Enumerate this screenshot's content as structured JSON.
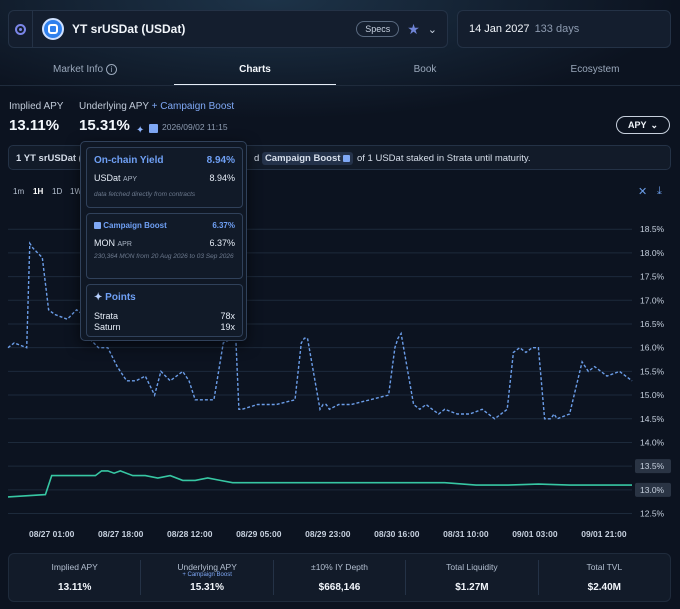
{
  "header": {
    "token_name": "YT srUSDat (USDat)",
    "specs_label": "Specs",
    "expiry_date": "14 Jan 2027",
    "expiry_days": "133 days"
  },
  "tabs": [
    {
      "label": "Market Info",
      "active": false
    },
    {
      "label": "Charts",
      "active": true
    },
    {
      "label": "Book",
      "active": false
    },
    {
      "label": "Ecosystem",
      "active": false
    }
  ],
  "summary": {
    "implied_label": "Implied APY",
    "implied_value": "13.11%",
    "underlying_label": "Underlying APY",
    "boost_label": "+ Campaign Boost",
    "underlying_value": "15.31%",
    "timestamp": "2026/09/02 11:15",
    "metric_select": "APY"
  },
  "description": {
    "lead": "1 YT srUSDat (",
    "mid": "d",
    "chip": "Campaign Boost",
    "tail": "of 1 USDat staked in Strata until maturity."
  },
  "timeframes": [
    "1m",
    "1H",
    "1D",
    "1W"
  ],
  "active_timeframe": "1H",
  "tooltip": {
    "onchain_title": "On-chain Yield",
    "onchain_value": "8.94%",
    "onchain_asset": "USDat",
    "onchain_asset_sup": "APY",
    "onchain_asset_value": "8.94%",
    "onchain_note": "data fetched directly from contracts",
    "boost_title": "Campaign Boost",
    "boost_value": "6.37%",
    "boost_asset": "MON",
    "boost_asset_sup": "APR",
    "boost_asset_value": "6.37%",
    "boost_note": "230,364 MON from 20 Aug 2026 to 03 Sep 2026",
    "points_title": "Points",
    "points": [
      {
        "name": "Strata",
        "value": "78x"
      },
      {
        "name": "Saturn",
        "value": "19x"
      }
    ]
  },
  "chart_data": {
    "type": "line",
    "x_ticks": [
      "08/27 01:00",
      "08/27 18:00",
      "08/28 12:00",
      "08/29 05:00",
      "08/29 23:00",
      "08/30 16:00",
      "08/31 10:00",
      "09/01 03:00",
      "09/01 21:00"
    ],
    "y_ticks": [
      "18.5%",
      "18.0%",
      "17.5%",
      "17.0%",
      "16.5%",
      "16.0%",
      "15.5%",
      "15.0%",
      "14.5%",
      "14.0%",
      "13.5%",
      "13.0%",
      "12.5%"
    ],
    "ylim": [
      12.3,
      18.8
    ],
    "y_axis_side": "right",
    "grid": true,
    "current_markers": [
      "13.5%",
      "13.0%"
    ],
    "series": [
      {
        "name": "Underlying APY",
        "style": "dashed",
        "color": "#6b9de8",
        "x_frac": [
          0,
          0.01,
          0.03,
          0.035,
          0.04,
          0.055,
          0.065,
          0.075,
          0.095,
          0.11,
          0.12,
          0.13,
          0.145,
          0.16,
          0.175,
          0.19,
          0.205,
          0.22,
          0.235,
          0.245,
          0.26,
          0.28,
          0.29,
          0.3,
          0.31,
          0.33,
          0.345,
          0.36,
          0.365,
          0.37,
          0.375,
          0.4,
          0.43,
          0.46,
          0.47,
          0.475,
          0.48,
          0.5,
          0.5,
          0.505,
          0.51,
          0.515,
          0.53,
          0.55,
          0.58,
          0.61,
          0.62,
          0.625,
          0.63,
          0.65,
          0.66,
          0.67,
          0.68,
          0.69,
          0.7,
          0.72,
          0.74,
          0.76,
          0.78,
          0.8,
          0.81,
          0.82,
          0.83,
          0.84,
          0.85,
          0.86,
          0.87,
          0.875,
          0.88,
          0.9,
          0.92,
          0.93,
          0.94,
          0.96,
          0.98,
          1.0
        ],
        "values": [
          16.0,
          16.1,
          16.0,
          18.2,
          18.1,
          17.9,
          16.8,
          16.7,
          16.6,
          16.8,
          16.7,
          16.2,
          16.0,
          16.0,
          15.6,
          15.3,
          15.3,
          15.4,
          15.0,
          15.5,
          15.3,
          15.5,
          15.3,
          14.9,
          14.9,
          14.9,
          16.1,
          16.2,
          16.2,
          14.7,
          14.7,
          14.8,
          14.8,
          14.9,
          16.1,
          16.2,
          16.2,
          14.7,
          14.7,
          14.8,
          14.8,
          14.7,
          14.8,
          14.8,
          14.9,
          15.0,
          16.0,
          16.2,
          16.3,
          14.8,
          14.7,
          14.8,
          14.7,
          14.6,
          14.7,
          14.6,
          14.6,
          14.7,
          14.5,
          14.7,
          15.9,
          16.0,
          15.9,
          16.0,
          16.0,
          14.5,
          14.5,
          14.6,
          14.5,
          14.6,
          15.7,
          15.5,
          15.6,
          15.4,
          15.5,
          15.3
        ]
      },
      {
        "name": "Implied APY",
        "style": "solid",
        "color": "#37c7a3",
        "x_frac": [
          0,
          0.06,
          0.07,
          0.14,
          0.15,
          0.16,
          0.17,
          0.18,
          0.2,
          0.22,
          0.24,
          0.26,
          0.28,
          0.3,
          0.32,
          0.34,
          0.36,
          0.4,
          0.45,
          0.5,
          0.55,
          0.6,
          0.65,
          0.7,
          0.75,
          0.8,
          0.85,
          0.9,
          0.95,
          1.0
        ],
        "values": [
          12.85,
          12.9,
          13.3,
          13.3,
          13.4,
          13.4,
          13.35,
          13.4,
          13.3,
          13.3,
          13.25,
          13.3,
          13.2,
          13.2,
          13.25,
          13.2,
          13.15,
          13.15,
          13.15,
          13.15,
          13.15,
          13.15,
          13.15,
          13.15,
          13.1,
          13.1,
          13.12,
          13.1,
          13.1,
          13.1
        ]
      }
    ]
  },
  "stats": [
    {
      "label": "Implied APY",
      "sub": "",
      "value": "13.11%"
    },
    {
      "label": "Underlying APY",
      "sub": "+ Campaign Boost",
      "value": "15.31%"
    },
    {
      "label": "±10% IY Depth",
      "sub": "",
      "value": "$668,146"
    },
    {
      "label": "Total Liquidity",
      "sub": "",
      "value": "$1.27M"
    },
    {
      "label": "Total TVL",
      "sub": "",
      "value": "$2.40M"
    }
  ]
}
